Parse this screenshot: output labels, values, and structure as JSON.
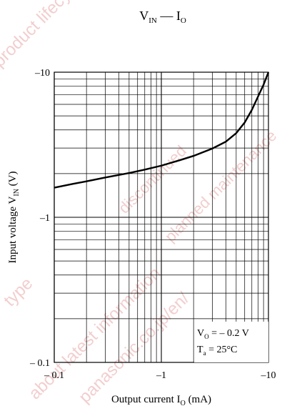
{
  "chart_data": {
    "type": "line",
    "title": {
      "main": "V",
      "main_sub": "IN",
      "sep": " — ",
      "end": "I",
      "end_sub": "O"
    },
    "xlabel": {
      "pre": "Output current  I",
      "sub": "O",
      "post": "  (mA)"
    },
    "ylabel": {
      "pre": "Input voltage  V",
      "sub": "IN",
      "post": "  (V)"
    },
    "x_scale": "log",
    "y_scale": "log",
    "xlim": [
      -0.1,
      -10
    ],
    "ylim": [
      -0.1,
      -10
    ],
    "x_ticks": [
      {
        "value": -0.1,
        "label": "– 0.1"
      },
      {
        "value": -1,
        "label": "–1"
      },
      {
        "value": -10,
        "label": "–10"
      }
    ],
    "y_ticks": [
      {
        "value": -0.1,
        "label": "– 0.1"
      },
      {
        "value": -1,
        "label": "–1"
      },
      {
        "value": -10,
        "label": "–10"
      }
    ],
    "grid": true,
    "series": [
      {
        "x": [
          -0.1,
          -0.15,
          -0.2,
          -0.3,
          -0.5,
          -0.7,
          -1,
          -1.5,
          -2,
          -3,
          -4,
          -5,
          -6,
          -7,
          -8,
          -9,
          -10
        ],
        "y": [
          -1.6,
          -1.7,
          -1.77,
          -1.88,
          -2.02,
          -2.13,
          -2.27,
          -2.48,
          -2.65,
          -2.98,
          -3.32,
          -3.8,
          -4.5,
          -5.5,
          -6.8,
          -8.2,
          -10
        ],
        "color": "#000000"
      }
    ],
    "annotation": {
      "line1_pre": "V",
      "line1_sub": "O",
      "line1_post": " = – 0.2 V",
      "line2_pre": "T",
      "line2_sub": "a",
      "line2_post": " = 25°C"
    }
  },
  "watermark": [
    "product lifecycle",
    "discontinued",
    "planned maintenance",
    "type",
    "about latest information",
    "panasonic.co.jp/en/"
  ]
}
